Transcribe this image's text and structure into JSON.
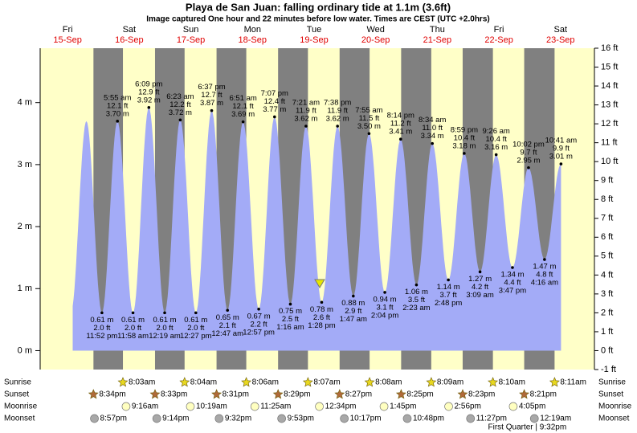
{
  "chart_data": {
    "type": "tide",
    "title": "Playa de San Juan: falling  ordinary tide at 1.1m (3.6ft)",
    "subtitle": "Image captured One hour and 22 minutes before low water. Times are CEST (UTC +2.0hrs)",
    "days": [
      {
        "weekday": "Fri",
        "date": "15-Sep"
      },
      {
        "weekday": "Sat",
        "date": "16-Sep"
      },
      {
        "weekday": "Sun",
        "date": "17-Sep"
      },
      {
        "weekday": "Mon",
        "date": "18-Sep"
      },
      {
        "weekday": "Tue",
        "date": "19-Sep"
      },
      {
        "weekday": "Wed",
        "date": "20-Sep"
      },
      {
        "weekday": "Thu",
        "date": "21-Sep"
      },
      {
        "weekday": "Fri",
        "date": "22-Sep"
      },
      {
        "weekday": "Sat",
        "date": "23-Sep"
      }
    ],
    "ylim": [
      -0.3048,
      4.8768
    ],
    "yticks": [
      {
        "value": 0,
        "label": "0 m"
      },
      {
        "value": 1,
        "label": "1 m"
      },
      {
        "value": 2,
        "label": "2 m"
      },
      {
        "value": 3,
        "label": "3 m"
      },
      {
        "value": 4,
        "label": "4 m"
      }
    ],
    "y2lim": [
      -1,
      16
    ],
    "y2ticks": [
      {
        "value": -1,
        "label": "-1 ft"
      },
      {
        "value": 0,
        "label": "0 ft"
      },
      {
        "value": 1,
        "label": "1 ft"
      },
      {
        "value": 2,
        "label": "2 ft"
      },
      {
        "value": 3,
        "label": "3 ft"
      },
      {
        "value": 4,
        "label": "4 ft"
      },
      {
        "value": 5,
        "label": "5 ft"
      },
      {
        "value": 6,
        "label": "6 ft"
      },
      {
        "value": 7,
        "label": "7 ft"
      },
      {
        "value": 8,
        "label": "8 ft"
      },
      {
        "value": 9,
        "label": "9 ft"
      },
      {
        "value": 10,
        "label": "10 ft"
      },
      {
        "value": 11,
        "label": "11 ft"
      },
      {
        "value": 12,
        "label": "12 ft"
      },
      {
        "value": 13,
        "label": "13 ft"
      },
      {
        "value": 14,
        "label": "14 ft"
      },
      {
        "value": 15,
        "label": "15 ft"
      },
      {
        "value": 16,
        "label": "16 ft"
      }
    ],
    "color": "#a3abf7",
    "tides": {
      "times": [
        "11:52 pm",
        "5:55 am",
        "11:58 am",
        "6:09 pm",
        "12:19 am",
        "6:23 am",
        "12:27 pm",
        "6:37 pm",
        "12:47 am",
        "6:51 am",
        "12:57 pm",
        "7:07 pm",
        "1:16 am",
        "7:21 am",
        "1:28 pm",
        "7:38 pm",
        "1:47 am",
        "7:55 am",
        "2:04 pm",
        "8:14 pm",
        "2:23 am",
        "8:34 am",
        "2:48 pm",
        "8:59 pm",
        "3:09 am",
        "9:26 am",
        "3:47 pm",
        "10:02 pm",
        "4:16 am",
        "10:41 am"
      ],
      "heights_m": [
        0.61,
        3.7,
        0.61,
        3.92,
        0.61,
        3.72,
        0.61,
        3.87,
        0.65,
        3.69,
        0.67,
        3.77,
        0.75,
        3.62,
        0.78,
        3.62,
        0.88,
        3.5,
        0.94,
        3.41,
        1.06,
        3.34,
        1.14,
        3.18,
        1.27,
        3.16,
        1.34,
        2.95,
        1.47,
        3.01
      ],
      "m_labels": [
        "0.61 m",
        "3.70 m",
        "0.61 m",
        "3.92 m",
        "0.61 m",
        "3.72 m",
        "0.61 m",
        "3.87 m",
        "0.65 m",
        "3.69 m",
        "0.67 m",
        "3.77 m",
        "0.75 m",
        "3.62 m",
        "0.78 m",
        "3.62 m",
        "0.88 m",
        "3.50 m",
        "0.94 m",
        "3.41 m",
        "1.06 m",
        "3.34 m",
        "1.14 m",
        "3.18 m",
        "1.27 m",
        "3.16 m",
        "1.34 m",
        "2.95 m",
        "1.47 m",
        "3.01 m"
      ],
      "heights_ft": [
        2.0,
        12.1,
        2.0,
        12.9,
        2.0,
        12.2,
        2.0,
        12.7,
        2.1,
        12.1,
        2.2,
        12.4,
        2.5,
        11.9,
        2.6,
        11.9,
        2.9,
        11.5,
        3.1,
        11.2,
        3.5,
        11.0,
        3.7,
        10.4,
        4.2,
        10.4,
        4.4,
        9.7,
        4.8,
        9.9
      ],
      "ft_labels": [
        "2.0 ft",
        "12.1 ft",
        "2.0 ft",
        "12.9 ft",
        "2.0 ft",
        "12.2 ft",
        "2.0 ft",
        "12.7 ft",
        "2.1 ft",
        "12.1 ft",
        "2.2 ft",
        "12.4 ft",
        "2.5 ft",
        "11.9 ft",
        "2.6 ft",
        "11.9 ft",
        "2.9 ft",
        "11.5 ft",
        "3.1 ft",
        "11.2 ft",
        "3.5 ft",
        "11.0 ft",
        "3.7 ft",
        "10.4 ft",
        "4.2 ft",
        "10.4 ft",
        "4.4 ft",
        "9.7 ft",
        "4.8 ft",
        "9.9 ft"
      ]
    },
    "rows": [
      {
        "name": "Sunrise",
        "times": [
          null,
          "8:03am",
          "8:04am",
          "8:06am",
          "8:07am",
          "8:08am",
          "8:09am",
          "8:10am",
          "8:11am"
        ]
      },
      {
        "name": "Sunset",
        "times": [
          "8:34pm",
          "8:33pm",
          "8:31pm",
          "8:29pm",
          "8:27pm",
          "8:25pm",
          "8:23pm",
          "8:21pm",
          null
        ]
      },
      {
        "name": "Moonrise",
        "times": [
          null,
          "9:16am",
          "10:19am",
          "11:25am",
          "12:34pm",
          "1:45pm",
          "2:56pm",
          "4:05pm",
          null
        ]
      },
      {
        "name": "Moonset",
        "times": [
          "8:57pm",
          "9:14pm",
          "9:32pm",
          "9:53pm",
          "10:17pm",
          "10:48pm",
          "11:27pm",
          null,
          "12:19am"
        ]
      }
    ],
    "moon_phases": [
      null,
      null,
      null,
      null,
      null,
      null,
      null,
      "First Quarter | 9:32pm",
      null
    ]
  }
}
